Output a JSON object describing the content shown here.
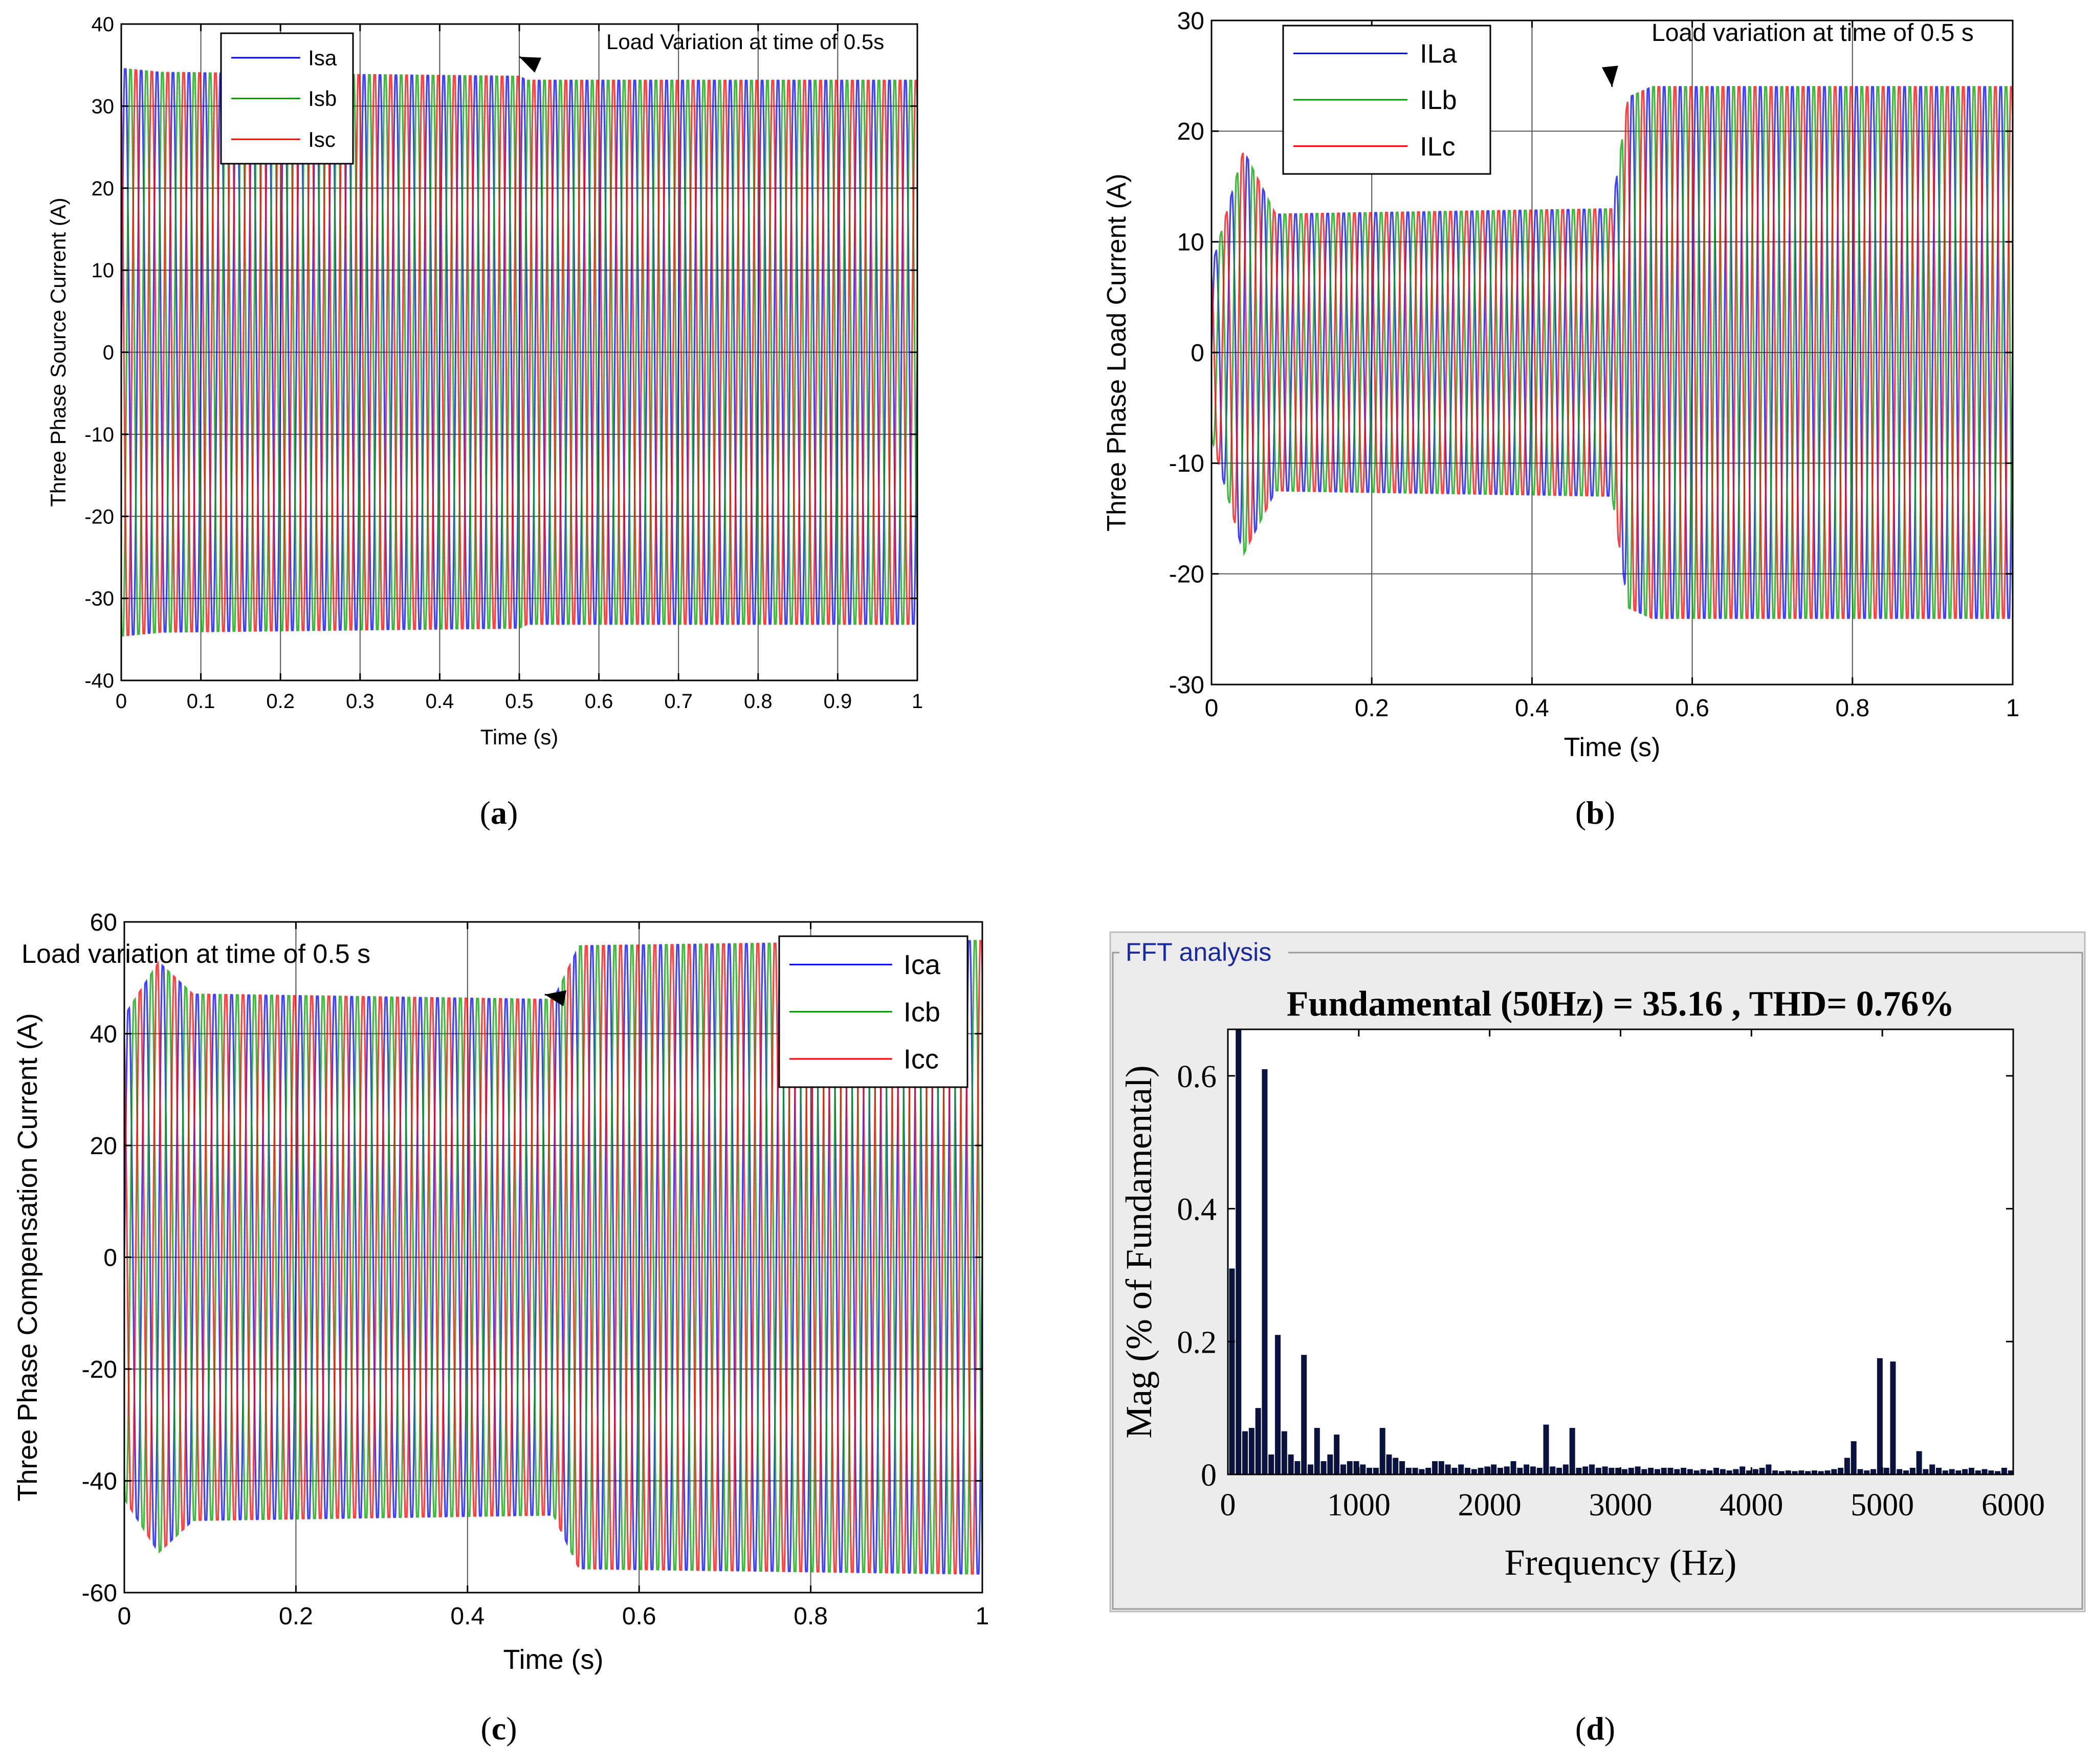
{
  "chart_data": [
    {
      "id": "a",
      "type": "line",
      "caption_letter": "a",
      "title": "",
      "xlabel": "Time (s)",
      "ylabel": "Three Phase Source Current (A)",
      "xlim": [
        0,
        1
      ],
      "ylim": [
        -40,
        40
      ],
      "xticks": [
        0,
        0.1,
        0.2,
        0.3,
        0.4,
        0.5,
        0.6,
        0.7,
        0.8,
        0.9,
        1
      ],
      "xtick_labels": [
        "0",
        "0.1",
        "0.2",
        "0.3",
        "0.4",
        "0.5",
        "0.6",
        "0.7",
        "0.8",
        "0.9",
        "1"
      ],
      "yticks": [
        -40,
        -30,
        -20,
        -10,
        0,
        10,
        20,
        30,
        40
      ],
      "ytick_labels": [
        "-40",
        "-30",
        "-20",
        "-10",
        "0",
        "10",
        "20",
        "30",
        "40"
      ],
      "grid": true,
      "legend_position": "top-left",
      "annotation": {
        "text": "Load Variation at time of 0.5s",
        "at_x": 0.5,
        "at_y": 36
      },
      "series": [
        {
          "name": "Isa",
          "color": "#0000ff",
          "phase_deg": 0,
          "envelope": [
            [
              0,
              36
            ],
            [
              0.05,
              35.5
            ],
            [
              0.5,
              35
            ],
            [
              0.51,
              34.5
            ],
            [
              1,
              34.5
            ]
          ]
        },
        {
          "name": "Isb",
          "color": "#00a000",
          "phase_deg": -120,
          "envelope": [
            [
              0,
              36
            ],
            [
              0.05,
              35.5
            ],
            [
              0.5,
              35
            ],
            [
              0.51,
              34.5
            ],
            [
              1,
              34.5
            ]
          ]
        },
        {
          "name": "Isc",
          "color": "#ff0000",
          "phase_deg": 120,
          "envelope": [
            [
              0,
              36
            ],
            [
              0.05,
              35.5
            ],
            [
              0.5,
              35
            ],
            [
              0.51,
              34.5
            ],
            [
              1,
              34.5
            ]
          ]
        }
      ]
    },
    {
      "id": "b",
      "type": "line",
      "caption_letter": "b",
      "title": "",
      "xlabel": "Time (s)",
      "ylabel": "Three Phase Load Current (A)",
      "xlim": [
        0,
        1
      ],
      "ylim": [
        -30,
        30
      ],
      "xticks": [
        0,
        0.2,
        0.4,
        0.6,
        0.8,
        1
      ],
      "xtick_labels": [
        "0",
        "0.2",
        "0.4",
        "0.6",
        "0.8",
        "1"
      ],
      "yticks": [
        -30,
        -20,
        -10,
        0,
        10,
        20,
        30
      ],
      "ytick_labels": [
        "-30",
        "-20",
        "-10",
        "0",
        "10",
        "20",
        "30"
      ],
      "grid": true,
      "legend_position": "top-left",
      "annotation": {
        "text": "Load variation at time of 0.5 s",
        "at_x": 0.5,
        "at_y": 24
      },
      "series": [
        {
          "name": "ILa",
          "color": "#0000ff",
          "phase_deg": 0,
          "envelope": [
            [
              0,
              8
            ],
            [
              0.04,
              19
            ],
            [
              0.08,
              13
            ],
            [
              0.5,
              13.5
            ],
            [
              0.52,
              24
            ],
            [
              0.55,
              25
            ],
            [
              1,
              25
            ]
          ]
        },
        {
          "name": "ILb",
          "color": "#00a000",
          "phase_deg": -120,
          "envelope": [
            [
              0,
              8
            ],
            [
              0.04,
              19
            ],
            [
              0.08,
              13
            ],
            [
              0.5,
              13.5
            ],
            [
              0.52,
              24
            ],
            [
              0.55,
              25
            ],
            [
              1,
              25
            ]
          ]
        },
        {
          "name": "ILc",
          "color": "#ff0000",
          "phase_deg": 120,
          "envelope": [
            [
              0,
              8
            ],
            [
              0.04,
              19
            ],
            [
              0.08,
              13
            ],
            [
              0.5,
              13.5
            ],
            [
              0.52,
              24
            ],
            [
              0.55,
              25
            ],
            [
              1,
              25
            ]
          ]
        }
      ]
    },
    {
      "id": "c",
      "type": "line",
      "caption_letter": "c",
      "title": "",
      "xlabel": "Time (s)",
      "ylabel": "Three Phase Compensation Current (A)",
      "xlim": [
        0,
        1
      ],
      "ylim": [
        -60,
        60
      ],
      "xticks": [
        0,
        0.2,
        0.4,
        0.6,
        0.8,
        1
      ],
      "xtick_labels": [
        "0",
        "0.2",
        "0.4",
        "0.6",
        "0.8",
        "1"
      ],
      "yticks": [
        -60,
        -40,
        -20,
        0,
        20,
        40,
        60
      ],
      "ytick_labels": [
        "-60",
        "-40",
        "-20",
        "0",
        "20",
        "40",
        "60"
      ],
      "grid": true,
      "legend_position": "top-right",
      "annotation": {
        "text": "Load variation at time of 0.5 s",
        "at_x": 0.49,
        "at_y": 47
      },
      "series": [
        {
          "name": "Ica",
          "color": "#0000ff",
          "phase_deg": 0,
          "envelope": [
            [
              0,
              45
            ],
            [
              0.04,
              55
            ],
            [
              0.08,
              49
            ],
            [
              0.5,
              48
            ],
            [
              0.53,
              58
            ],
            [
              1,
              59
            ]
          ]
        },
        {
          "name": "Icb",
          "color": "#00a000",
          "phase_deg": -120,
          "envelope": [
            [
              0,
              45
            ],
            [
              0.04,
              55
            ],
            [
              0.08,
              49
            ],
            [
              0.5,
              48
            ],
            [
              0.53,
              58
            ],
            [
              1,
              59
            ]
          ]
        },
        {
          "name": "Icc",
          "color": "#ff0000",
          "phase_deg": 120,
          "envelope": [
            [
              0,
              45
            ],
            [
              0.04,
              55
            ],
            [
              0.08,
              49
            ],
            [
              0.5,
              48
            ],
            [
              0.53,
              58
            ],
            [
              1,
              59
            ]
          ]
        }
      ]
    },
    {
      "id": "d",
      "type": "bar",
      "caption_letter": "d",
      "panel_label": "FFT analysis",
      "title": "Fundamental (50Hz) = 35.16 , THD= 0.76%",
      "xlabel": "Frequency (Hz)",
      "ylabel": "Mag (% of Fundamental)",
      "xlim": [
        0,
        6000
      ],
      "ylim": [
        0,
        0.67
      ],
      "xticks": [
        0,
        1000,
        2000,
        3000,
        4000,
        5000,
        6000
      ],
      "xtick_labels": [
        "0",
        "1000",
        "2000",
        "3000",
        "4000",
        "5000",
        "6000"
      ],
      "yticks": [
        0,
        0.2,
        0.4,
        0.6
      ],
      "ytick_labels": [
        "0",
        "0.2",
        "0.4",
        "0.6"
      ],
      "grid": false,
      "bar_color": "#0a1240",
      "bars": [
        [
          0,
          0.31
        ],
        [
          50,
          0.67
        ],
        [
          100,
          0.065
        ],
        [
          150,
          0.07
        ],
        [
          200,
          0.1
        ],
        [
          250,
          0.61
        ],
        [
          300,
          0.03
        ],
        [
          350,
          0.21
        ],
        [
          400,
          0.065
        ],
        [
          450,
          0.03
        ],
        [
          500,
          0.02
        ],
        [
          550,
          0.18
        ],
        [
          600,
          0.015
        ],
        [
          650,
          0.07
        ],
        [
          700,
          0.02
        ],
        [
          750,
          0.03
        ],
        [
          800,
          0.06
        ],
        [
          850,
          0.015
        ],
        [
          900,
          0.02
        ],
        [
          950,
          0.02
        ],
        [
          1000,
          0.015
        ],
        [
          1050,
          0.01
        ],
        [
          1100,
          0.01
        ],
        [
          1150,
          0.07
        ],
        [
          1200,
          0.03
        ],
        [
          1250,
          0.025
        ],
        [
          1300,
          0.02
        ],
        [
          1350,
          0.01
        ],
        [
          1400,
          0.01
        ],
        [
          1450,
          0.008
        ],
        [
          1500,
          0.01
        ],
        [
          1550,
          0.02
        ],
        [
          1600,
          0.02
        ],
        [
          1650,
          0.015
        ],
        [
          1700,
          0.01
        ],
        [
          1750,
          0.015
        ],
        [
          1800,
          0.01
        ],
        [
          1850,
          0.008
        ],
        [
          1900,
          0.01
        ],
        [
          1950,
          0.012
        ],
        [
          2000,
          0.015
        ],
        [
          2050,
          0.01
        ],
        [
          2100,
          0.012
        ],
        [
          2150,
          0.02
        ],
        [
          2200,
          0.01
        ],
        [
          2250,
          0.015
        ],
        [
          2300,
          0.012
        ],
        [
          2350,
          0.01
        ],
        [
          2400,
          0.075
        ],
        [
          2450,
          0.012
        ],
        [
          2500,
          0.01
        ],
        [
          2550,
          0.015
        ],
        [
          2600,
          0.07
        ],
        [
          2650,
          0.01
        ],
        [
          2700,
          0.012
        ],
        [
          2750,
          0.015
        ],
        [
          2800,
          0.01
        ],
        [
          2850,
          0.012
        ],
        [
          2900,
          0.01
        ],
        [
          2950,
          0.01
        ],
        [
          3000,
          0.008
        ],
        [
          3050,
          0.01
        ],
        [
          3100,
          0.012
        ],
        [
          3150,
          0.008
        ],
        [
          3200,
          0.01
        ],
        [
          3250,
          0.008
        ],
        [
          3300,
          0.01
        ],
        [
          3350,
          0.01
        ],
        [
          3400,
          0.008
        ],
        [
          3450,
          0.01
        ],
        [
          3500,
          0.008
        ],
        [
          3550,
          0.006
        ],
        [
          3600,
          0.008
        ],
        [
          3650,
          0.006
        ],
        [
          3700,
          0.01
        ],
        [
          3750,
          0.008
        ],
        [
          3800,
          0.006
        ],
        [
          3850,
          0.008
        ],
        [
          3900,
          0.012
        ],
        [
          3950,
          0.006
        ],
        [
          4000,
          0.008
        ],
        [
          4050,
          0.01
        ],
        [
          4100,
          0.015
        ],
        [
          4150,
          0.006
        ],
        [
          4200,
          0.005
        ],
        [
          4250,
          0.006
        ],
        [
          4300,
          0.005
        ],
        [
          4350,
          0.006
        ],
        [
          4400,
          0.005
        ],
        [
          4450,
          0.006
        ],
        [
          4500,
          0.005
        ],
        [
          4550,
          0.006
        ],
        [
          4600,
          0.008
        ],
        [
          4650,
          0.01
        ],
        [
          4700,
          0.025
        ],
        [
          4750,
          0.05
        ],
        [
          4800,
          0.008
        ],
        [
          4850,
          0.006
        ],
        [
          4900,
          0.008
        ],
        [
          4950,
          0.175
        ],
        [
          5000,
          0.01
        ],
        [
          5050,
          0.17
        ],
        [
          5100,
          0.008
        ],
        [
          5150,
          0.006
        ],
        [
          5200,
          0.01
        ],
        [
          5250,
          0.035
        ],
        [
          5300,
          0.008
        ],
        [
          5350,
          0.015
        ],
        [
          5400,
          0.01
        ],
        [
          5450,
          0.006
        ],
        [
          5500,
          0.008
        ],
        [
          5550,
          0.006
        ],
        [
          5600,
          0.008
        ],
        [
          5650,
          0.01
        ],
        [
          5700,
          0.006
        ],
        [
          5750,
          0.008
        ],
        [
          5800,
          0.006
        ],
        [
          5850,
          0.005
        ],
        [
          5900,
          0.01
        ],
        [
          5950,
          0.006
        ]
      ]
    }
  ]
}
